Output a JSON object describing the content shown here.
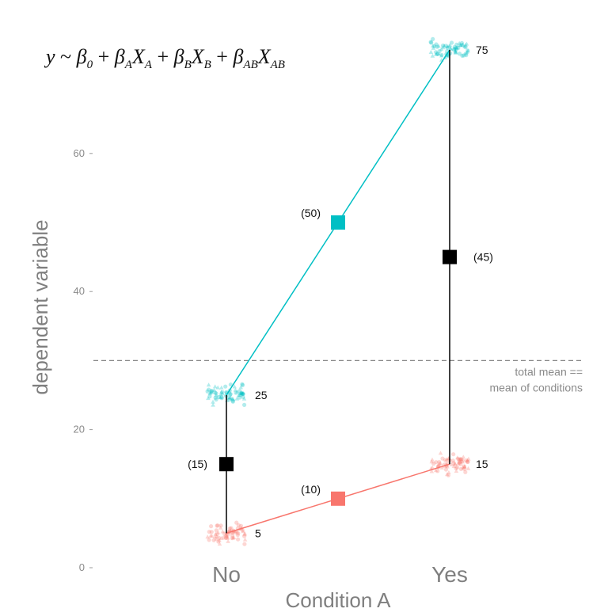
{
  "chart_data": {
    "type": "line",
    "formula": {
      "y": "y",
      "tilde": "~",
      "terms": [
        {
          "sym": "β",
          "sub": "0",
          "op": ""
        },
        {
          "sym": "β",
          "sub": "A",
          "op": "+",
          "var": "X",
          "var_sub": "A"
        },
        {
          "sym": "β",
          "sub": "B",
          "op": "+",
          "var": "X",
          "var_sub": "B"
        },
        {
          "sym": "β",
          "sub": "AB",
          "op": "+",
          "var": "X",
          "var_sub": "AB"
        }
      ]
    },
    "xlabel": "Condition A",
    "ylabel": "dependent variable",
    "categories": [
      "No",
      "Yes"
    ],
    "y_ticks": [
      0,
      20,
      40,
      60
    ],
    "ylim": [
      0,
      75
    ],
    "colors": {
      "red": "#f8766d",
      "cyan": "#00bfc4",
      "black": "#000000",
      "ref": "#888888"
    },
    "series": [
      {
        "color": "red",
        "values": [
          5,
          15
        ],
        "value_labels": [
          "5",
          "15"
        ]
      },
      {
        "color": "cyan",
        "values": [
          25,
          75
        ],
        "value_labels": [
          "25",
          "75"
        ]
      }
    ],
    "midpoints": [
      {
        "label": "(10)",
        "value": 10,
        "color": "red",
        "between": "categories"
      },
      {
        "label": "(50)",
        "value": 50,
        "color": "cyan",
        "between": "categories"
      },
      {
        "label": "(15)",
        "value": 15,
        "color": "black",
        "category": "No"
      },
      {
        "label": "(45)",
        "value": 45,
        "color": "black",
        "category": "Yes"
      }
    ],
    "reference_line": {
      "value": 30,
      "label_lines": [
        "total mean ==",
        "mean of conditions"
      ],
      "style": "dashed"
    }
  }
}
